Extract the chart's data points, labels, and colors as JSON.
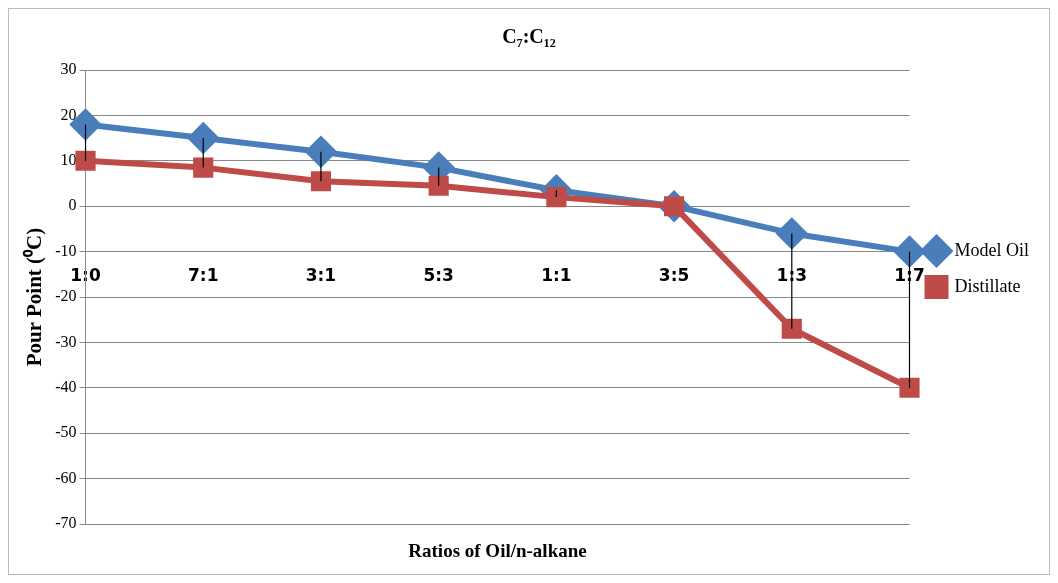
{
  "chart_data": {
    "type": "line",
    "title": "C₇:C₁₂",
    "xlabel": "Ratios of Oil/n-alkane",
    "ylabel": "Pour Point (⁰C)",
    "categories": [
      "1:0",
      "7:1",
      "3:1",
      "5:3",
      "1:1",
      "3:5",
      "1:3",
      "1:7"
    ],
    "series": [
      {
        "name": "Model Oil",
        "color": "#4a7ebb",
        "marker": "diamond",
        "values": [
          18,
          15,
          12,
          8.5,
          3.5,
          0,
          -6,
          -10
        ]
      },
      {
        "name": "Distillate",
        "color": "#be4b48",
        "marker": "square",
        "values": [
          10,
          8.5,
          5.5,
          4.5,
          2,
          0,
          -27,
          -40
        ],
        "errors": [
          [
            10,
            18
          ],
          [
            8.5,
            15
          ],
          [
            5.5,
            12
          ],
          [
            4.5,
            8.5
          ],
          [
            2,
            3.5
          ],
          null,
          [
            -27,
            -6
          ],
          [
            -40,
            -10
          ]
        ]
      }
    ],
    "ylim": [
      -70,
      30
    ],
    "yticks": [
      -70,
      -60,
      -50,
      -40,
      -30,
      -20,
      -10,
      0,
      10,
      20,
      30
    ],
    "grid": "y",
    "legend": "right"
  }
}
